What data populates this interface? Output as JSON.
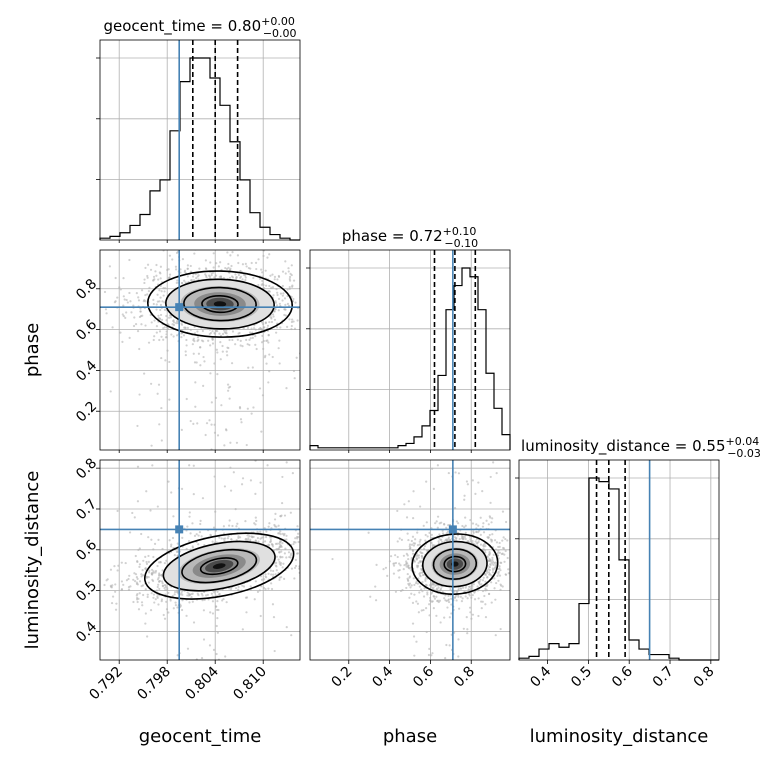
{
  "chart_data": {
    "type": "corner",
    "parameters": [
      "geocent_time",
      "phase",
      "luminosity_distance"
    ],
    "axis_labels": {
      "geocent_time": "geocent_time",
      "phase": "phase",
      "luminosity_distance": "luminosity_distance"
    },
    "ranges": {
      "geocent_time": [
        0.7896,
        0.8146
      ],
      "phase": [
        0.01,
        0.99
      ],
      "luminosity_distance": [
        0.33,
        0.82
      ]
    },
    "ticks": {
      "geocent_time": [
        0.792,
        0.798,
        0.804,
        0.81
      ],
      "phase": [
        0.2,
        0.4,
        0.6,
        0.8
      ],
      "luminosity_distance": [
        0.4,
        0.5,
        0.6,
        0.7,
        0.8
      ]
    },
    "tick_labels": {
      "geocent_time": [
        "0.792",
        "0.798",
        "0.804",
        "0.810"
      ],
      "phase": [
        "0.2",
        "0.4",
        "0.6",
        "0.8"
      ],
      "luminosity_distance": [
        "0.4",
        "0.5",
        "0.6",
        "0.7",
        "0.8"
      ]
    },
    "titles": {
      "geocent_time": {
        "text": "geocent_time = 0.80",
        "plus": "+0.00",
        "minus": "−0.00"
      },
      "phase": {
        "text": "phase = 0.72",
        "plus": "+0.10",
        "minus": "−0.10"
      },
      "luminosity_distance": {
        "text": "luminosity_distance = 0.55",
        "plus": "+0.04",
        "minus": "−0.03"
      }
    },
    "quantiles": {
      "geocent_time": [
        0.8012,
        0.804,
        0.8068
      ],
      "phase": [
        0.62,
        0.72,
        0.82
      ],
      "luminosity_distance": [
        0.52,
        0.55,
        0.59
      ]
    },
    "truths": {
      "geocent_time": 0.7995,
      "phase": 0.71,
      "luminosity_distance": 0.65
    },
    "histograms": {
      "geocent_time": [
        1,
        2,
        4,
        8,
        14,
        27,
        33,
        60,
        87,
        100,
        100,
        89,
        74,
        54,
        33,
        15,
        7,
        3,
        1,
        0
      ],
      "phase": [
        2,
        1,
        1,
        1,
        1,
        1,
        1,
        1,
        1,
        1,
        1,
        2,
        3,
        6,
        11,
        18,
        34,
        64,
        75,
        83,
        79,
        64,
        35,
        19,
        7
      ],
      "luminosity_distance": [
        1,
        2,
        6,
        9,
        7,
        9,
        31,
        100,
        98,
        94,
        55,
        11,
        6,
        3,
        3,
        1,
        0,
        0,
        0,
        0
      ]
    },
    "posterior_2d": {
      "phase_vs_geocent_time": {
        "x": "geocent_time",
        "y": "phase",
        "peak": [
          0.8046,
          0.725
        ],
        "sigma": [
          0.0043,
          0.077
        ],
        "correlation": -0.05
      },
      "luminosity_distance_vs_geocent_time": {
        "x": "geocent_time",
        "y": "luminosity_distance",
        "peak": [
          0.8045,
          0.56
        ],
        "sigma": [
          0.0045,
          0.035
        ],
        "correlation": 0.55
      },
      "luminosity_distance_vs_phase": {
        "x": "phase",
        "y": "luminosity_distance",
        "peak": [
          0.72,
          0.565
        ],
        "sigma": [
          0.1,
          0.035
        ],
        "correlation": 0.1
      }
    },
    "truth_color": "#4682b4",
    "hist_color": "#000000",
    "scatter_color": "#b3b3b3",
    "contour_levels_sigma": [
      0.5,
      1.0,
      1.5,
      2.0
    ],
    "grid": true
  }
}
